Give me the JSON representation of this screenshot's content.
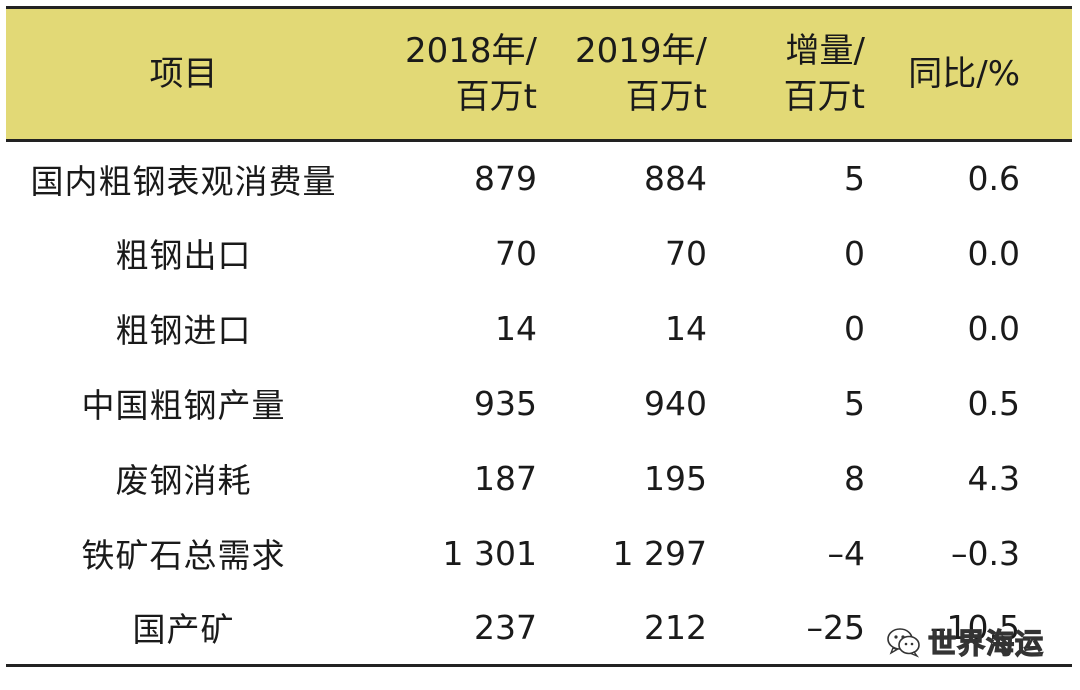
{
  "table": {
    "headers": [
      {
        "line1": "项目",
        "line2": ""
      },
      {
        "line1": "2018年/",
        "line2": "百万t"
      },
      {
        "line1": "2019年/",
        "line2": "百万t"
      },
      {
        "line1": "增量/",
        "line2": "百万t"
      },
      {
        "line1": "同比/%",
        "line2": ""
      }
    ],
    "rows": [
      {
        "item": "国内粗钢表观消费量",
        "y2018": "879",
        "y2019": "884",
        "delta": "5",
        "yoy": "0.6"
      },
      {
        "item": "粗钢出口",
        "y2018": "70",
        "y2019": "70",
        "delta": "0",
        "yoy": "0.0"
      },
      {
        "item": "粗钢进口",
        "y2018": "14",
        "y2019": "14",
        "delta": "0",
        "yoy": "0.0"
      },
      {
        "item": "中国粗钢产量",
        "y2018": "935",
        "y2019": "940",
        "delta": "5",
        "yoy": "0.5"
      },
      {
        "item": "废钢消耗",
        "y2018": "187",
        "y2019": "195",
        "delta": "8",
        "yoy": "4.3"
      },
      {
        "item": "铁矿石总需求",
        "y2018": "1 301",
        "y2019": "1 297",
        "delta": "–4",
        "yoy": "–0.3"
      },
      {
        "item": "国产矿",
        "y2018": "237",
        "y2019": "212",
        "delta": "–25",
        "yoy": "–10.5"
      }
    ]
  },
  "watermark": {
    "text": "世界海运",
    "icon": "wechat-icon"
  },
  "colors": {
    "header_bg": "#e2d976",
    "rule": "#222222"
  }
}
